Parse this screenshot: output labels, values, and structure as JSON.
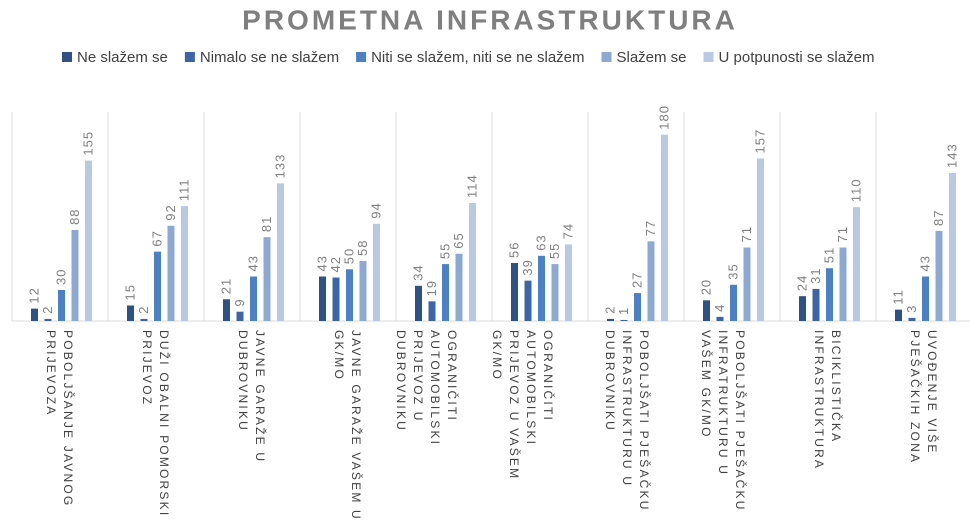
{
  "chart_data": {
    "type": "bar",
    "title": "PROMETNA INFRASTRUKTURA",
    "categories": [
      "POBOLJŠANJE JAVNOG PRIJEVOZA",
      "DUŽI OBALNI POMORSKI PRIJEVOZ",
      "JAVNE GARAŽE U DUBROVNIKU",
      "JAVNE GARAŽE VAŠEM U GK/MO",
      "OGRANIČITI AUTOMOBILSKI PRIJEVOZ U DUBROVNIKU",
      "OGRANIČITI AUTOMOBILSKI PRIJEVOZ U VAŠEM GK/MO",
      "POBOLJŠATI PJEŠAČKU INFRASTRUKTURU U DUBROVNIKU",
      "POBOLJŠATI PJEŠAČKU INFRATRUKTURU U VAŠEM GK/MO",
      "BICIKLISTIČKA INFRASTRUKTURA",
      "UVOĐENJE VIŠE PJEŠAČKIH ZONA"
    ],
    "series": [
      {
        "name": "Ne slažem se",
        "color": "#2f5283",
        "values": [
          12,
          15,
          21,
          43,
          34,
          56,
          2,
          20,
          24,
          11
        ]
      },
      {
        "name": "Nimalo se ne slažem",
        "color": "#3b66a3",
        "values": [
          2,
          2,
          9,
          42,
          19,
          39,
          1,
          4,
          31,
          3
        ]
      },
      {
        "name": "Niti se slažem, niti se ne slažem",
        "color": "#4c80c0",
        "values": [
          30,
          67,
          43,
          50,
          55,
          63,
          27,
          35,
          51,
          43
        ]
      },
      {
        "name": "Slažem se",
        "color": "#8ea9d1",
        "values": [
          88,
          92,
          81,
          58,
          65,
          55,
          77,
          71,
          71,
          87
        ]
      },
      {
        "name": "U potpunosti se slažem",
        "color": "#b9c9e3",
        "values": [
          155,
          111,
          133,
          94,
          114,
          74,
          180,
          157,
          110,
          143
        ]
      }
    ]
  }
}
